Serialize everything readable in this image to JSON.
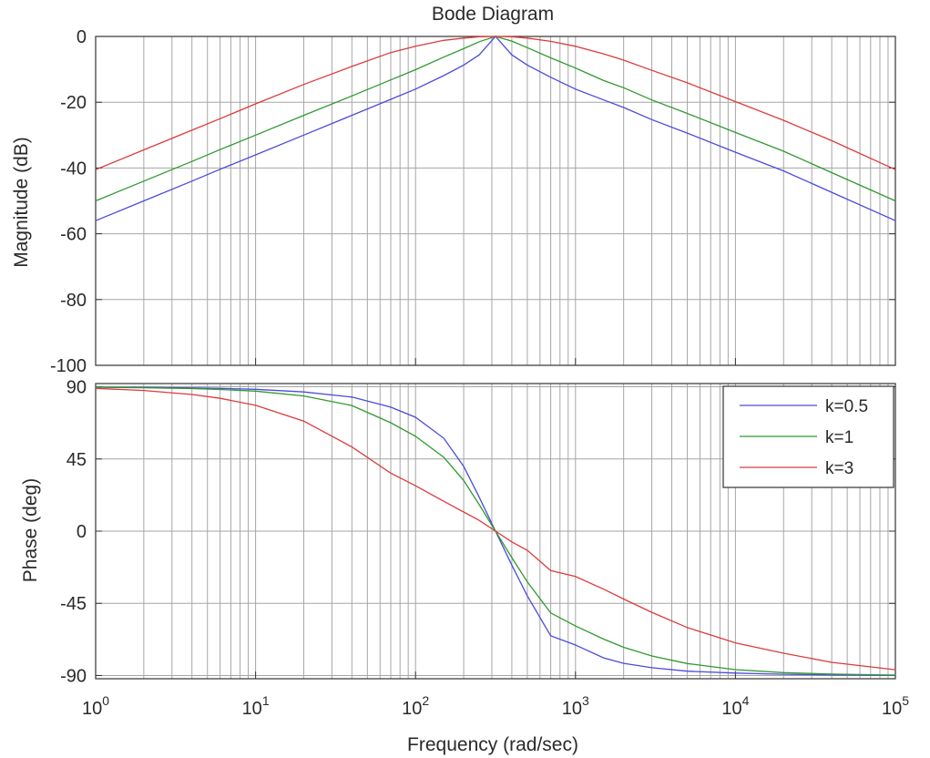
{
  "chart_data": {
    "type": "line",
    "title": "Bode Diagram",
    "xlabel": "Frequency  (rad/sec)",
    "x_scale": "log",
    "xlim": [
      1,
      100000
    ],
    "x_ticks": [
      {
        "base": "10",
        "exp": "0"
      },
      {
        "base": "10",
        "exp": "1"
      },
      {
        "base": "10",
        "exp": "2"
      },
      {
        "base": "10",
        "exp": "3"
      },
      {
        "base": "10",
        "exp": "4"
      },
      {
        "base": "10",
        "exp": "5"
      }
    ],
    "grid": true,
    "legend_position": "top-right",
    "x": [
      1,
      2,
      4,
      6,
      10,
      20,
      40,
      70,
      100,
      150,
      200,
      250,
      316.2,
      400,
      500,
      700,
      1000,
      1500,
      2000,
      3000,
      5000,
      10000,
      20000,
      40000,
      100000
    ],
    "panels": [
      {
        "ylabel": "Magnitude (dB)",
        "ylim": [
          -100,
          0
        ],
        "yticks": [
          0,
          -20,
          -40,
          -60,
          -80,
          -100
        ],
        "series": [
          {
            "name": "k=0.5",
            "color": "#4b4bdc",
            "values": [
              -56,
              -50,
              -44,
              -40.4,
              -36,
              -30,
              -24,
              -19.1,
              -16,
              -11.9,
              -8.7,
              -5.6,
              0,
              -5.6,
              -8.7,
              -12.4,
              -16,
              -19.3,
              -21.6,
              -25.3,
              -29.4,
              -35.2,
              -40.9,
              -47.4,
              -56
            ]
          },
          {
            "name": "k=1",
            "color": "#2f9a2f",
            "values": [
              -50,
              -44,
              -38,
              -34.4,
              -30,
              -24,
              -18.1,
              -13.2,
              -10.1,
              -6.3,
              -3.7,
              -1.6,
              0,
              -1.4,
              -3.4,
              -6.5,
              -9.6,
              -13.4,
              -15.6,
              -19.3,
              -23.4,
              -29.2,
              -34.9,
              -41.4,
              -50
            ]
          },
          {
            "name": "k=3",
            "color": "#dd3b3b",
            "values": [
              -40.5,
              -34.5,
              -28.5,
              -25,
              -20.5,
              -14.6,
              -9.1,
              -4.9,
              -3,
              -1.2,
              -0.5,
              -0.1,
              0,
              -0.1,
              -0.5,
              -1.5,
              -3,
              -5.3,
              -7.2,
              -10.3,
              -14.1,
              -19.8,
              -25.5,
              -31.7,
              -40.5
            ]
          }
        ]
      },
      {
        "ylabel": "Phase (deg)",
        "ylim": [
          -92,
          92
        ],
        "yticks": [
          90,
          45,
          0,
          -45,
          -90
        ],
        "series": [
          {
            "name": "k=0.5",
            "color": "#4b4bdc",
            "values": [
              89.8,
              89.6,
              89.3,
              89,
              88.4,
              86.8,
              83.6,
              77.3,
              71,
              58,
              40.4,
              21.2,
              0,
              -21.2,
              -40.4,
              -65.2,
              -71,
              -79,
              -82.4,
              -85.1,
              -87.3,
              -88.5,
              -89.2,
              -89.6,
              -89.9
            ]
          },
          {
            "name": "k=1",
            "color": "#2f9a2f",
            "values": [
              89.7,
              89.4,
              88.9,
              88.3,
              87.3,
              84.3,
              78.3,
              67.6,
              59.1,
              46.1,
              31.6,
              16.5,
              0,
              -16.5,
              -31.6,
              -51,
              -59.1,
              -67.3,
              -72.4,
              -77.8,
              -82.5,
              -86.3,
              -88.2,
              -89.1,
              -89.7
            ]
          },
          {
            "name": "k=3",
            "color": "#dd3b3b",
            "values": [
              89,
              87.7,
              85.2,
              82.8,
              78.4,
              68.6,
              52.5,
              36.2,
              28.3,
              18.6,
              11.9,
              6.7,
              0,
              -6.7,
              -11.9,
              -24.6,
              -28.3,
              -36.2,
              -42.3,
              -50.6,
              -60.1,
              -69.6,
              -76.1,
              -81.8,
              -86.4
            ]
          }
        ]
      }
    ]
  }
}
